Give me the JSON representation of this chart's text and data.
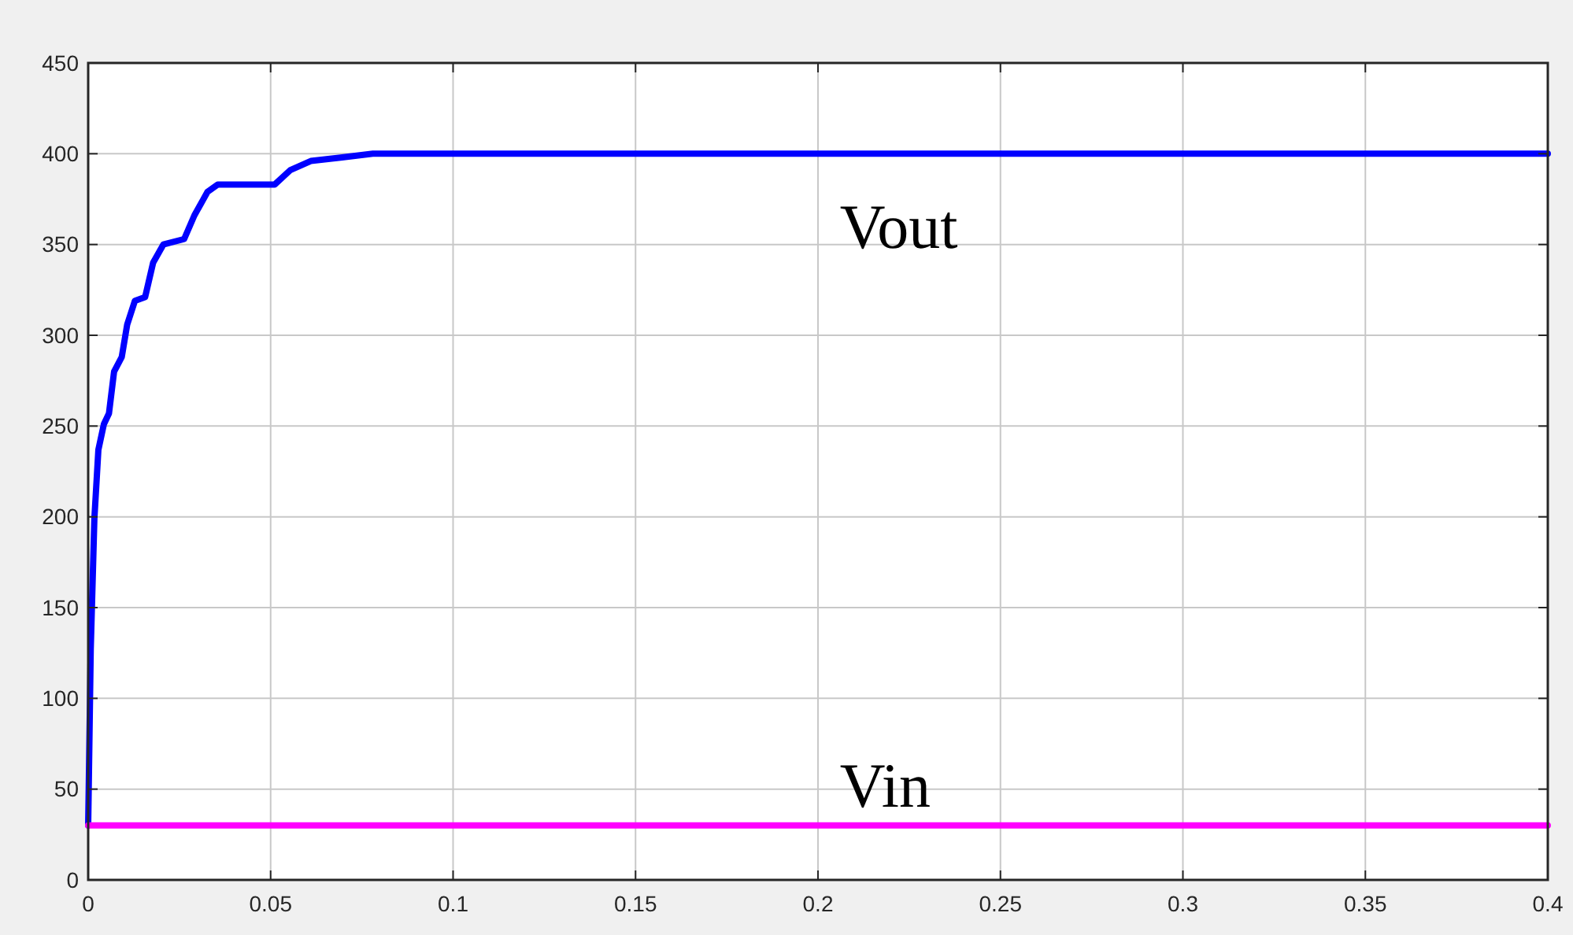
{
  "chart_data": {
    "type": "line",
    "x": [
      0,
      0.0007,
      0.0017,
      0.0028,
      0.0043,
      0.0057,
      0.0071,
      0.0092,
      0.0107,
      0.0128,
      0.0156,
      0.0178,
      0.0206,
      0.0263,
      0.0291,
      0.0327,
      0.0355,
      0.0511,
      0.0554,
      0.061,
      0.0696,
      0.078,
      0.1,
      0.2,
      0.3,
      0.4
    ],
    "series": [
      {
        "name": "Vout",
        "color": "#0000ff",
        "values": [
          30,
          127,
          199,
          237,
          251,
          257,
          280,
          288,
          306,
          319,
          321,
          340,
          350,
          353,
          366,
          379,
          383,
          383,
          391,
          396,
          398,
          400,
          400,
          400,
          400,
          400
        ]
      },
      {
        "name": "Vin",
        "color": "#ff00ff",
        "values": [
          30,
          30,
          30,
          30,
          30,
          30,
          30,
          30,
          30,
          30,
          30,
          30,
          30,
          30,
          30,
          30,
          30,
          30,
          30,
          30,
          30,
          30,
          30,
          30,
          30,
          30
        ]
      }
    ],
    "xlim": [
      0,
      0.4
    ],
    "xticks": [
      0,
      0.05,
      0.1,
      0.15,
      0.2,
      0.25,
      0.3,
      0.35,
      0.4
    ],
    "ylim": [
      0,
      450
    ],
    "yticks": [
      0,
      50,
      100,
      150,
      200,
      250,
      300,
      350,
      400,
      450
    ],
    "grid": true,
    "line_style": "solid",
    "marker": "none"
  }
}
